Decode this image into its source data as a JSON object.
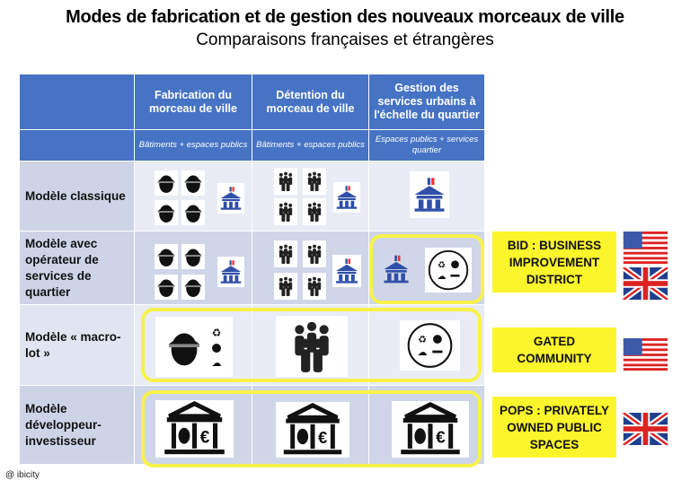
{
  "title": "Modes de fabrication et de gestion des nouveaux morceaux de ville",
  "subtitle": "Comparaisons françaises et étrangères",
  "columns": [
    {
      "title": "Fabrication du morceau de ville",
      "scope": "Bâtiments + espaces publics"
    },
    {
      "title": "Détention du morceau de ville",
      "scope": "Bâtiments + espaces publics"
    },
    {
      "title": "Gestion des services urbains à l'échelle du quartier",
      "scope": "Espaces publics + services quartier"
    }
  ],
  "rows": [
    {
      "label": "Modèle classique"
    },
    {
      "label": "Modèle avec opérateur de services de quartier"
    },
    {
      "label": "Modèle « macro-lot »"
    },
    {
      "label": "Modèle développeur-investisseur"
    }
  ],
  "examples": [
    {
      "label": "BID : BUSINESS IMPROVEMENT DISTRICT",
      "flags": [
        "us-flag",
        "uk-flag"
      ]
    },
    {
      "label": "GATED COMMUNITY",
      "flags": [
        "us-flag"
      ]
    },
    {
      "label": "POPS : PRIVATELY OWNED PUBLIC SPACES",
      "flags": [
        "uk-flag"
      ]
    }
  ],
  "credit": "@ ibicity",
  "colors": {
    "header": "#4673c4",
    "highlight": "#f7f24a",
    "public": "#2f4fa8"
  }
}
